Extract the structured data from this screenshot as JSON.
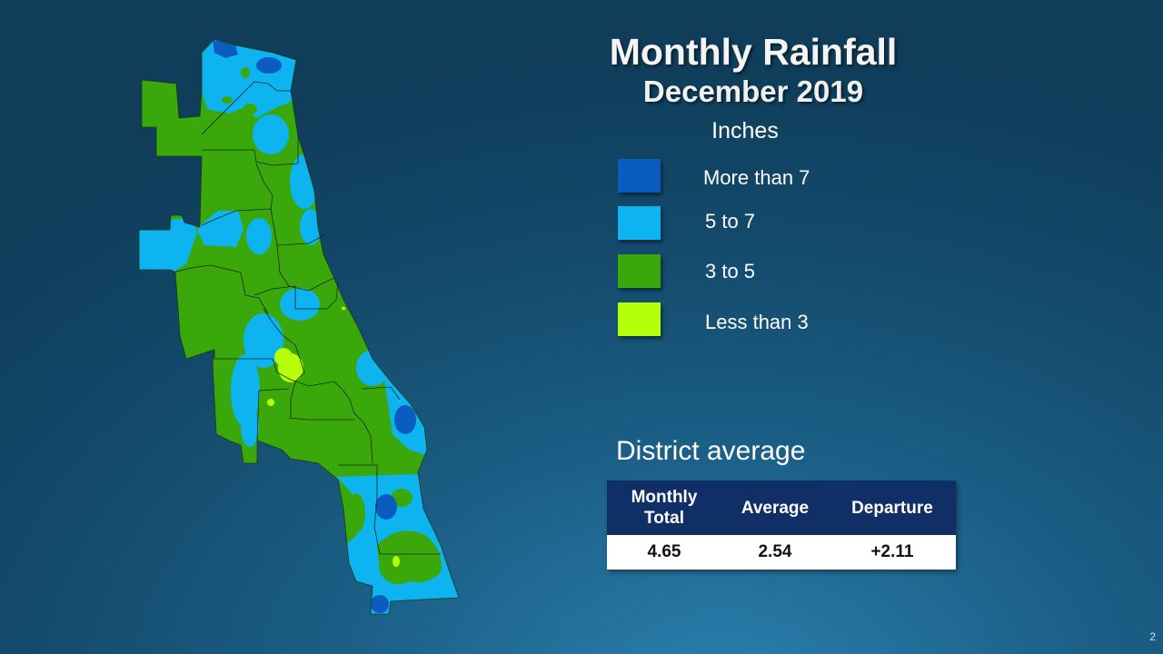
{
  "title": "Monthly Rainfall",
  "subtitle": "December 2019",
  "legend": {
    "units": "Inches",
    "items": [
      {
        "label": "More than 7",
        "color": "#0a5cc0"
      },
      {
        "label": "5 to 7",
        "color": "#0db4f0"
      },
      {
        "label": "3 to 5",
        "color": "#3aa80a"
      },
      {
        "label": "Less than 3",
        "color": "#b6ff0a"
      }
    ]
  },
  "district_average": {
    "heading": "District average",
    "columns": [
      "Monthly Total",
      "Average",
      "Departure"
    ],
    "values": [
      "4.65",
      "2.54",
      "+2.11"
    ]
  },
  "page_number": "2"
}
